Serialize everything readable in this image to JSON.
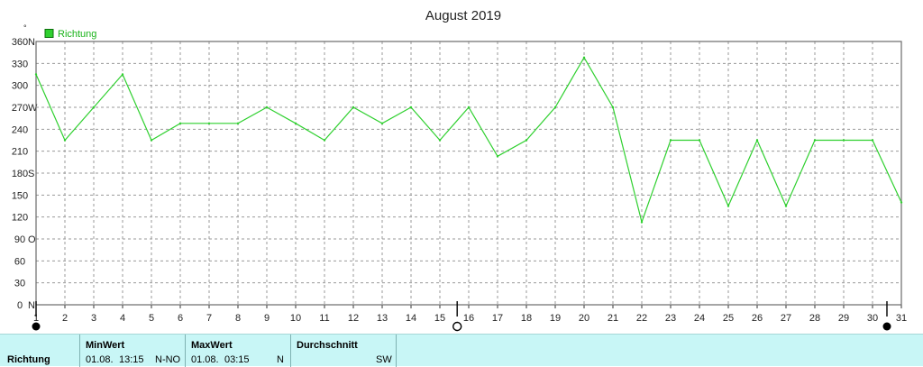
{
  "chart_data": {
    "type": "line",
    "title": "August 2019",
    "y_unit_label": "°",
    "ylim": [
      0,
      360
    ],
    "y_ticks": [
      {
        "value": 0,
        "label": "0",
        "dir": "N"
      },
      {
        "value": 30,
        "label": "30",
        "dir": ""
      },
      {
        "value": 60,
        "label": "60",
        "dir": ""
      },
      {
        "value": 90,
        "label": "90",
        "dir": "O"
      },
      {
        "value": 120,
        "label": "120",
        "dir": ""
      },
      {
        "value": 150,
        "label": "150",
        "dir": ""
      },
      {
        "value": 180,
        "label": "180",
        "dir": "S"
      },
      {
        "value": 210,
        "label": "210",
        "dir": ""
      },
      {
        "value": 240,
        "label": "240",
        "dir": ""
      },
      {
        "value": 270,
        "label": "270",
        "dir": "W"
      },
      {
        "value": 300,
        "label": "300",
        "dir": ""
      },
      {
        "value": 330,
        "label": "330",
        "dir": ""
      },
      {
        "value": 360,
        "label": "360",
        "dir": "N"
      }
    ],
    "xlim": [
      1,
      31
    ],
    "x_ticks": [
      "1",
      "2",
      "3",
      "4",
      "5",
      "6",
      "7",
      "8",
      "9",
      "10",
      "11",
      "12",
      "13",
      "14",
      "15",
      "16",
      "17",
      "18",
      "19",
      "20",
      "21",
      "22",
      "23",
      "24",
      "25",
      "26",
      "27",
      "28",
      "29",
      "30",
      "31"
    ],
    "grid": true,
    "legend": "top-left",
    "series": [
      {
        "name": "Richtung",
        "color": "#2fd02f",
        "x": [
          1,
          2,
          3,
          4,
          5,
          6,
          7,
          8,
          9,
          10,
          11,
          12,
          13,
          14,
          15,
          16,
          17,
          18,
          19,
          20,
          21,
          22,
          23,
          24,
          25,
          26,
          27,
          28,
          29,
          30,
          31
        ],
        "values": [
          315,
          225,
          270,
          315,
          225,
          248,
          248,
          248,
          270,
          248,
          225,
          270,
          248,
          270,
          225,
          270,
          203,
          225,
          270,
          338,
          270,
          113,
          225,
          225,
          135,
          225,
          135,
          225,
          225,
          225,
          140
        ]
      }
    ],
    "moon_phases": [
      {
        "day": 1,
        "phase": "new-moon"
      },
      {
        "day": 15.6,
        "phase": "full-moon"
      },
      {
        "day": 30.5,
        "phase": "new-moon"
      }
    ]
  },
  "footer": {
    "row_label": "Richtung",
    "columns": [
      {
        "header": "MinWert",
        "date": "01.08.",
        "time": "13:15",
        "value": "N-NO"
      },
      {
        "header": "MaxWert",
        "date": "01.08.",
        "time": "03:15",
        "value": "N"
      },
      {
        "header": "Durchschnitt",
        "value": "SW"
      }
    ]
  }
}
